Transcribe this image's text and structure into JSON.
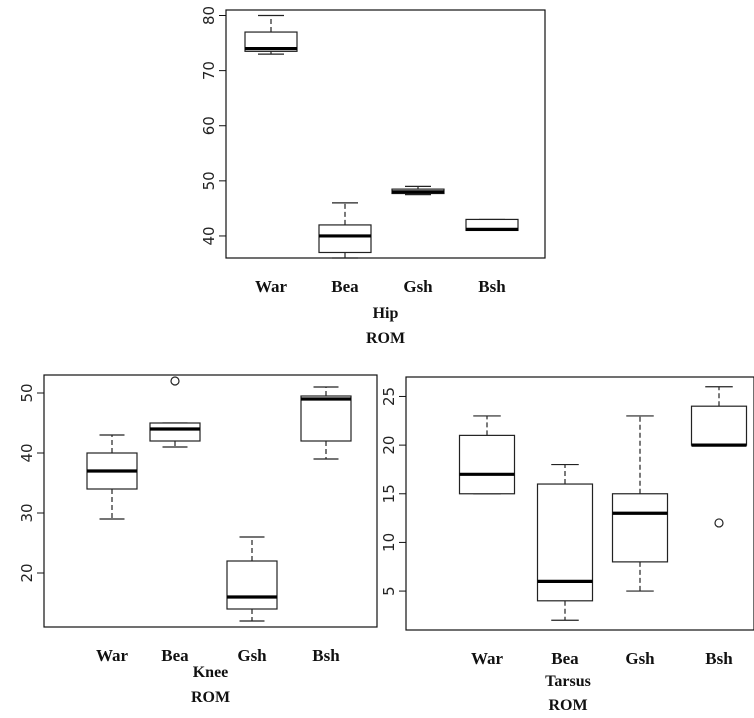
{
  "chart_data": [
    {
      "type": "boxplot",
      "xlabel": [
        "Hip",
        "ROM"
      ],
      "categories": [
        "War",
        "Bea",
        "Gsh",
        "Bsh"
      ],
      "ylim": [
        36,
        81
      ],
      "yticks": [
        40,
        50,
        60,
        70,
        80
      ],
      "boxes": [
        {
          "category": "War",
          "min": 73,
          "q1": 73.5,
          "median": 74,
          "q3": 77,
          "max": 80,
          "outliers": []
        },
        {
          "category": "Bea",
          "min": 36,
          "q1": 37,
          "median": 40,
          "q3": 42,
          "max": 46,
          "outliers": []
        },
        {
          "category": "Gsh",
          "min": 47.5,
          "q1": 47.7,
          "median": 48,
          "q3": 48.5,
          "max": 49,
          "outliers": []
        },
        {
          "category": "Bsh",
          "min": 41,
          "q1": 41,
          "median": 41.2,
          "q3": 43,
          "max": 43,
          "outliers": []
        }
      ]
    },
    {
      "type": "boxplot",
      "xlabel": [
        "Knee",
        "ROM"
      ],
      "categories": [
        "War",
        "Bea",
        "Gsh",
        "Bsh"
      ],
      "ylim": [
        11,
        53
      ],
      "yticks": [
        20,
        30,
        40,
        50
      ],
      "boxes": [
        {
          "category": "War",
          "min": 29,
          "q1": 34,
          "median": 37,
          "q3": 40,
          "max": 43,
          "outliers": []
        },
        {
          "category": "Bea",
          "min": 41,
          "q1": 42,
          "median": 44,
          "q3": 45,
          "max": 45,
          "outliers": [
            52
          ]
        },
        {
          "category": "Gsh",
          "min": 12,
          "q1": 14,
          "median": 16,
          "q3": 22,
          "max": 26,
          "outliers": []
        },
        {
          "category": "Bsh",
          "min": 39,
          "q1": 42,
          "median": 49,
          "q3": 49.5,
          "max": 51,
          "outliers": []
        }
      ]
    },
    {
      "type": "boxplot",
      "xlabel": [
        "Tarsus",
        "ROM"
      ],
      "categories": [
        "War",
        "Bea",
        "Gsh",
        "Bsh"
      ],
      "ylim": [
        1,
        27
      ],
      "yticks": [
        5,
        10,
        15,
        20,
        25
      ],
      "boxes": [
        {
          "category": "War",
          "min": 15,
          "q1": 15,
          "median": 17,
          "q3": 21,
          "max": 23,
          "outliers": []
        },
        {
          "category": "Bea",
          "min": 2,
          "q1": 4,
          "median": 6,
          "q3": 16,
          "max": 18,
          "outliers": []
        },
        {
          "category": "Gsh",
          "min": 5,
          "q1": 8,
          "median": 13,
          "q3": 15,
          "max": 23,
          "outliers": []
        },
        {
          "category": "Bsh",
          "min": 20,
          "q1": 20,
          "median": 20,
          "q3": 24,
          "max": 26,
          "outliers": [
            12
          ]
        }
      ]
    }
  ]
}
